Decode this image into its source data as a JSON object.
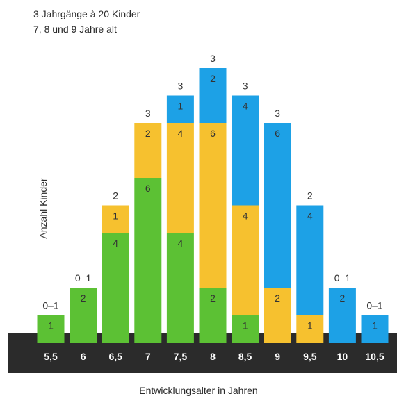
{
  "subtitle_lines": [
    "3 Jahrgänge à 20 Kinder",
    "7, 8 und 9 Jahre alt"
  ],
  "chart_data": {
    "type": "bar",
    "stacked": true,
    "title": "",
    "xlabel": "Entwicklungsalter in Jahren",
    "ylabel": "Anzahl Kinder",
    "categories": [
      "5,5",
      "6",
      "6,5",
      "7",
      "7,5",
      "8",
      "8,5",
      "9",
      "9,5",
      "10",
      "10,5"
    ],
    "ylim": [
      0,
      13
    ],
    "series": [
      {
        "color": "#5cc134",
        "values": [
          1,
          2,
          4,
          6,
          4,
          2,
          1,
          0,
          0,
          0,
          0
        ]
      },
      {
        "color": "#f6c12f",
        "values": [
          0,
          0,
          1,
          2,
          4,
          6,
          4,
          2,
          1,
          0,
          0
        ]
      },
      {
        "color": "#1da1e6",
        "values": [
          0,
          0,
          0,
          0,
          1,
          2,
          4,
          6,
          4,
          2,
          1
        ]
      }
    ],
    "top_labels": [
      "0–1",
      "0–1",
      "2",
      "3",
      "3",
      "3",
      "3",
      "3",
      "2",
      "0–1",
      "0–1"
    ],
    "baseline_color": "#2b2b2b"
  }
}
